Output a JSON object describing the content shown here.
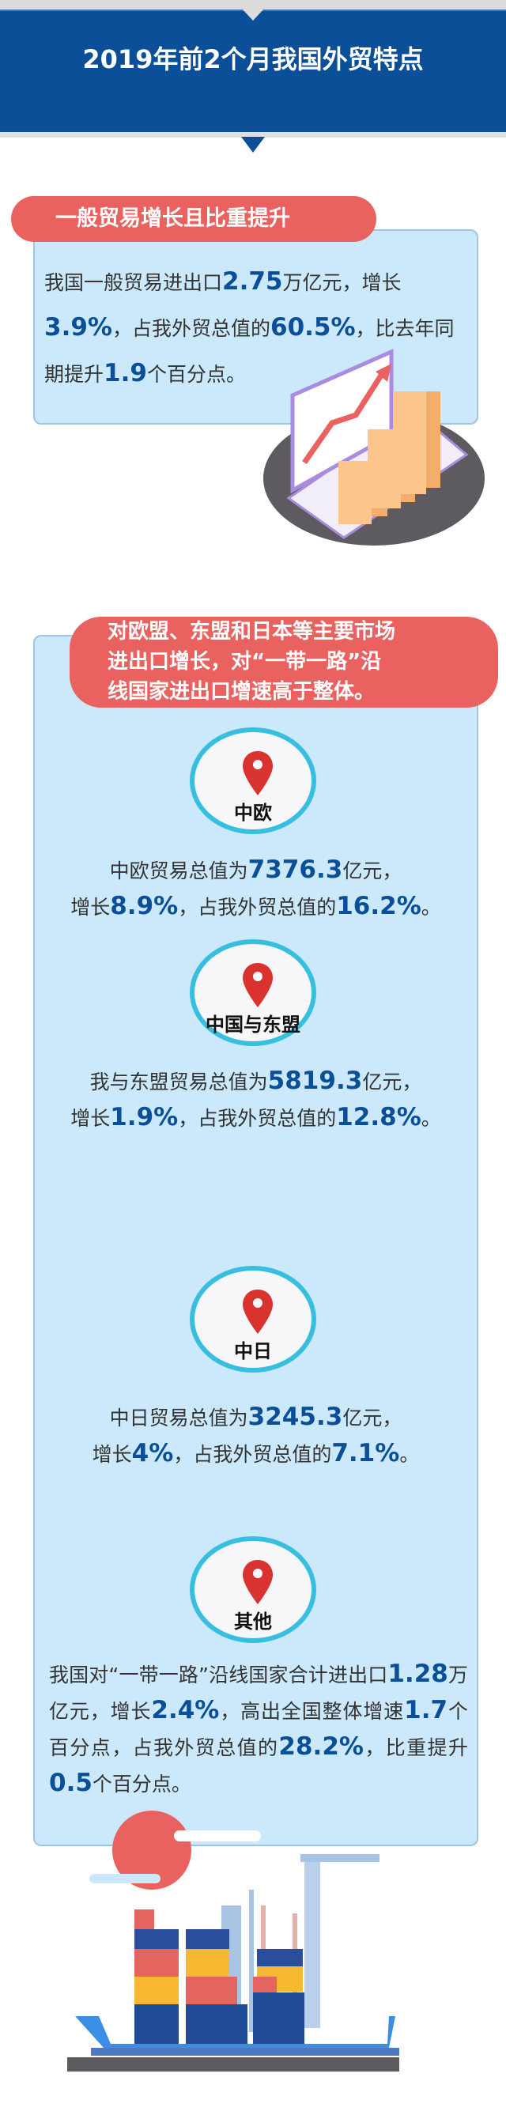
{
  "header": {
    "title": "2019年前2个月我国外贸特点"
  },
  "section1": {
    "heading": "一般贸易增长且比重提升",
    "paragraph": [
      {
        "t": "我国一般贸易进出口"
      },
      {
        "b": "2.75"
      },
      {
        "t": "万亿元，增长"
      },
      {
        "b": "3.9%"
      },
      {
        "t": "，占我外贸总值的"
      },
      {
        "b": "60.5%"
      },
      {
        "t": "，比去年同期提升"
      },
      {
        "b": "1.9"
      },
      {
        "t": "个百分点。"
      }
    ]
  },
  "section2": {
    "heading_lines": [
      "对欧盟、东盟和日本等主要市场",
      "进出口增长，对“一带一路”沿",
      "线国家进出口增速高于整体。"
    ],
    "markets": [
      {
        "label": "中欧",
        "lines": [
          [
            {
              "t": "中欧贸易总值为"
            },
            {
              "b": "7376.3"
            },
            {
              "t": "亿元，"
            }
          ],
          [
            {
              "t": "增长"
            },
            {
              "b": "8.9%"
            },
            {
              "t": "，占我外贸总值的"
            },
            {
              "b": "16.2%"
            },
            {
              "t": "。"
            }
          ]
        ]
      },
      {
        "label": "中国与东盟",
        "lines": [
          [
            {
              "t": "我与东盟贸易总值为"
            },
            {
              "b": "5819.3"
            },
            {
              "t": "亿元，"
            }
          ],
          [
            {
              "t": "增长"
            },
            {
              "b": "1.9%"
            },
            {
              "t": "，占我外贸总值的"
            },
            {
              "b": "12.8%"
            },
            {
              "t": "。"
            }
          ]
        ]
      },
      {
        "label": "中日",
        "lines": [
          [
            {
              "t": "中日贸易总值为"
            },
            {
              "b": "3245.3"
            },
            {
              "t": "亿元，"
            }
          ],
          [
            {
              "t": "增长"
            },
            {
              "b": "4%"
            },
            {
              "t": "，占我外贸总值的"
            },
            {
              "b": "7.1%"
            },
            {
              "t": "。"
            }
          ]
        ]
      },
      {
        "label": "其他",
        "paragraph": [
          {
            "t": "我国对“一带一路”沿线国家合计进出口"
          },
          {
            "b": "1.28"
          },
          {
            "t": "万亿元，增长"
          },
          {
            "b": "2.4%"
          },
          {
            "t": "，高出全国整体增速"
          },
          {
            "b": "1.7"
          },
          {
            "t": "个百分点，占我外贸总值的"
          },
          {
            "b": "28.2%"
          },
          {
            "t": "，比重提升"
          },
          {
            "b": "0.5"
          },
          {
            "t": "个百分点。"
          }
        ]
      }
    ]
  },
  "colors": {
    "header_blue": "#0a4f98",
    "accent_red": "#e9625f",
    "box_blue": "#cbe9fa",
    "circle_ring": "#38bedf",
    "number_blue": "#0a4f98"
  },
  "icons": [
    "location-pin-icon",
    "laptop-chart-illustration",
    "cargo-ship-illustration"
  ]
}
